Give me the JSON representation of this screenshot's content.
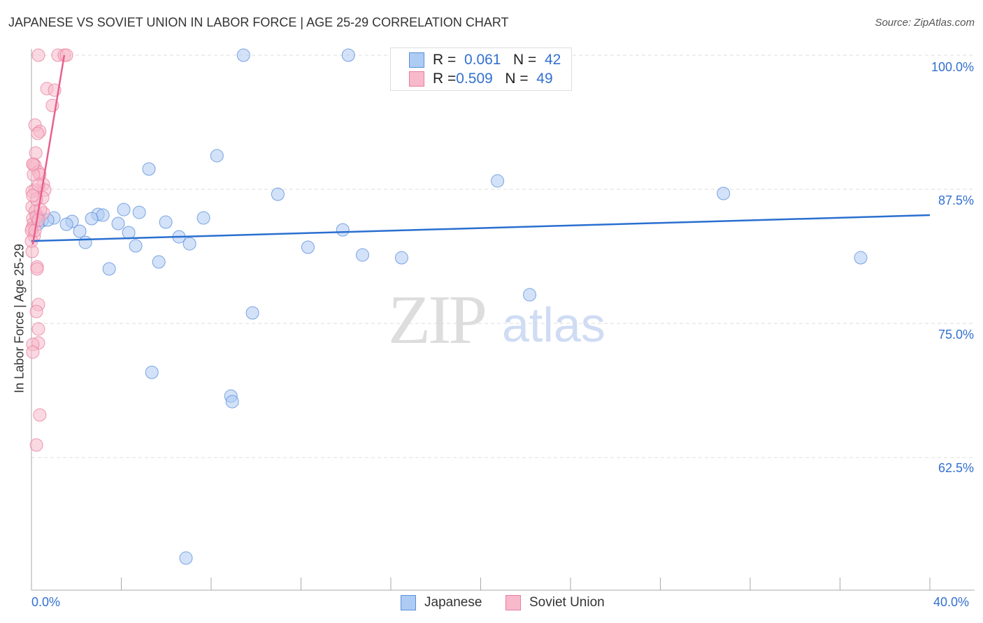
{
  "chart_data": {
    "type": "scatter",
    "title": "JAPANESE VS SOVIET UNION IN LABOR FORCE | AGE 25-29 CORRELATION CHART",
    "source": "Source: ZipAtlas.com",
    "xlabel": "",
    "ylabel": "In Labor Force | Age 25-29",
    "xlim": [
      0,
      40
    ],
    "ylim": [
      50,
      100
    ],
    "x_tick_labels": [
      "0.0%",
      "40.0%"
    ],
    "y_ticks": [
      100,
      87.5,
      75,
      62.5
    ],
    "y_tick_labels": [
      "100.0%",
      "87.5%",
      "75.0%",
      "62.5%"
    ],
    "watermark": "ZIPatlas",
    "legend_placement": "top-center",
    "series": [
      {
        "name": "Japanese",
        "color": "#5b8fdc",
        "fill": "#aecbf3",
        "line_color": "#2a6fd0",
        "r": "0.061",
        "n": "42",
        "trend": [
          [
            0,
            82.68
          ],
          [
            40,
            85.09
          ]
        ],
        "points": [
          [
            9.44,
            100
          ],
          [
            14.11,
            100
          ],
          [
            16.36,
            97.85
          ],
          [
            5.23,
            89.39
          ],
          [
            8.26,
            90.63
          ],
          [
            20.75,
            88.28
          ],
          [
            10.97,
            87.04
          ],
          [
            30.81,
            87.11
          ],
          [
            4.11,
            85.61
          ],
          [
            4.8,
            85.35
          ],
          [
            2.96,
            85.16
          ],
          [
            3.18,
            85.09
          ],
          [
            2.68,
            84.77
          ],
          [
            1.81,
            84.51
          ],
          [
            1.0,
            84.83
          ],
          [
            0.31,
            84.9
          ],
          [
            0.47,
            84.57
          ],
          [
            0.72,
            84.64
          ],
          [
            0.28,
            84.24
          ],
          [
            1.56,
            84.24
          ],
          [
            2.15,
            83.59
          ],
          [
            3.86,
            84.31
          ],
          [
            5.98,
            84.44
          ],
          [
            7.66,
            84.83
          ],
          [
            4.33,
            83.46
          ],
          [
            6.57,
            83.07
          ],
          [
            2.4,
            82.55
          ],
          [
            4.64,
            82.23
          ],
          [
            7.04,
            82.42
          ],
          [
            12.31,
            82.1
          ],
          [
            13.86,
            83.72
          ],
          [
            14.74,
            81.38
          ],
          [
            16.48,
            81.12
          ],
          [
            36.92,
            81.12
          ],
          [
            3.46,
            80.08
          ],
          [
            5.67,
            80.73
          ],
          [
            22.18,
            77.67
          ],
          [
            9.84,
            75.98
          ],
          [
            5.36,
            70.44
          ],
          [
            8.88,
            68.23
          ],
          [
            8.94,
            67.71
          ],
          [
            6.88,
            53.13
          ]
        ]
      },
      {
        "name": "Soviet Union",
        "color": "#e87fa0",
        "fill": "#f7b9cb",
        "line_color": "#e8608f",
        "r": "0.509",
        "n": "49",
        "trend": [
          [
            0.06,
            82.36
          ],
          [
            1.46,
            100
          ]
        ],
        "points": [
          [
            0.31,
            100
          ],
          [
            1.18,
            100
          ],
          [
            1.46,
            100
          ],
          [
            1.56,
            100
          ],
          [
            0.69,
            96.88
          ],
          [
            1.03,
            96.74
          ],
          [
            0.93,
            95.31
          ],
          [
            0.16,
            93.49
          ],
          [
            0.37,
            92.9
          ],
          [
            0.28,
            92.71
          ],
          [
            0.19,
            90.89
          ],
          [
            0.09,
            89.84
          ],
          [
            0.16,
            89.71
          ],
          [
            0.31,
            89.13
          ],
          [
            0.37,
            88.87
          ],
          [
            0.53,
            87.96
          ],
          [
            0.59,
            87.43
          ],
          [
            0.16,
            87.43
          ],
          [
            0.03,
            87.3
          ],
          [
            0.5,
            86.72
          ],
          [
            0.03,
            85.87
          ],
          [
            0.53,
            85.29
          ],
          [
            0.16,
            85.42
          ],
          [
            0.06,
            84.77
          ],
          [
            0.09,
            84.31
          ],
          [
            0.03,
            83.85
          ],
          [
            0.12,
            83.14
          ],
          [
            0.03,
            81.71
          ],
          [
            0.25,
            80.27
          ],
          [
            0.25,
            80.08
          ],
          [
            0.31,
            76.76
          ],
          [
            0.22,
            76.11
          ],
          [
            0.31,
            74.48
          ],
          [
            0.31,
            73.18
          ],
          [
            0.06,
            73.05
          ],
          [
            0.06,
            72.33
          ],
          [
            0.37,
            66.47
          ],
          [
            0.22,
            63.67
          ],
          [
            0,
            83.66
          ],
          [
            0.22,
            84.96
          ],
          [
            0.4,
            85.61
          ],
          [
            0,
            82.68
          ],
          [
            0.09,
            88.87
          ],
          [
            0.22,
            86.59
          ],
          [
            0.06,
            89.84
          ],
          [
            0.31,
            87.89
          ],
          [
            0.06,
            86.91
          ],
          [
            0.16,
            83.66
          ],
          [
            0.31,
            84.64
          ]
        ]
      }
    ]
  }
}
